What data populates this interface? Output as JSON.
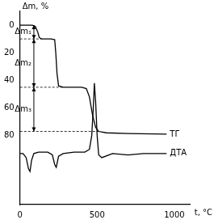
{
  "chart_data": {
    "type": "line",
    "x_label": "t, °C",
    "y_label": "Δm, %",
    "xlim": [
      0,
      1100
    ],
    "ylim": [
      -10,
      130
    ],
    "xticks": [
      0,
      500,
      1000
    ],
    "yticks": [
      0,
      20,
      40,
      60,
      80
    ],
    "grid": false,
    "series": [
      {
        "name": "ТГ",
        "color": "#000000",
        "x": [
          0,
          80,
          100,
          115,
          125,
          140,
          200,
          225,
          232,
          240,
          250,
          280,
          400,
          430,
          450,
          470,
          490,
          510,
          560,
          700,
          950
        ],
        "values": [
          0,
          0,
          1,
          5,
          9,
          10,
          10,
          10.5,
          20,
          35,
          44,
          45,
          45,
          46,
          52,
          65,
          74,
          77,
          78,
          78.5,
          79
        ]
      },
      {
        "name": "ДТА",
        "color": "#000000",
        "x": [
          0,
          20,
          40,
          55,
          65,
          75,
          90,
          120,
          180,
          210,
          225,
          235,
          250,
          280,
          350,
          420,
          450,
          465,
          475,
          482,
          490,
          500,
          510,
          530,
          600,
          700,
          800,
          900,
          950
        ],
        "values": [
          93,
          93,
          96,
          104,
          106,
          98,
          93,
          92,
          92,
          94,
          101,
          103,
          95,
          93,
          92,
          92,
          90,
          80,
          60,
          42,
          55,
          80,
          94,
          96,
          93,
          94,
          93,
          93,
          93
        ]
      }
    ],
    "annotations": [
      {
        "text": "Δm₁",
        "x": 90,
        "y_from": 0,
        "y_to": 10
      },
      {
        "text": "Δm₂",
        "x": 90,
        "y_from": 10,
        "y_to": 45
      },
      {
        "text": "Δm₃",
        "x": 90,
        "y_from": 45,
        "y_to": 77
      }
    ]
  }
}
